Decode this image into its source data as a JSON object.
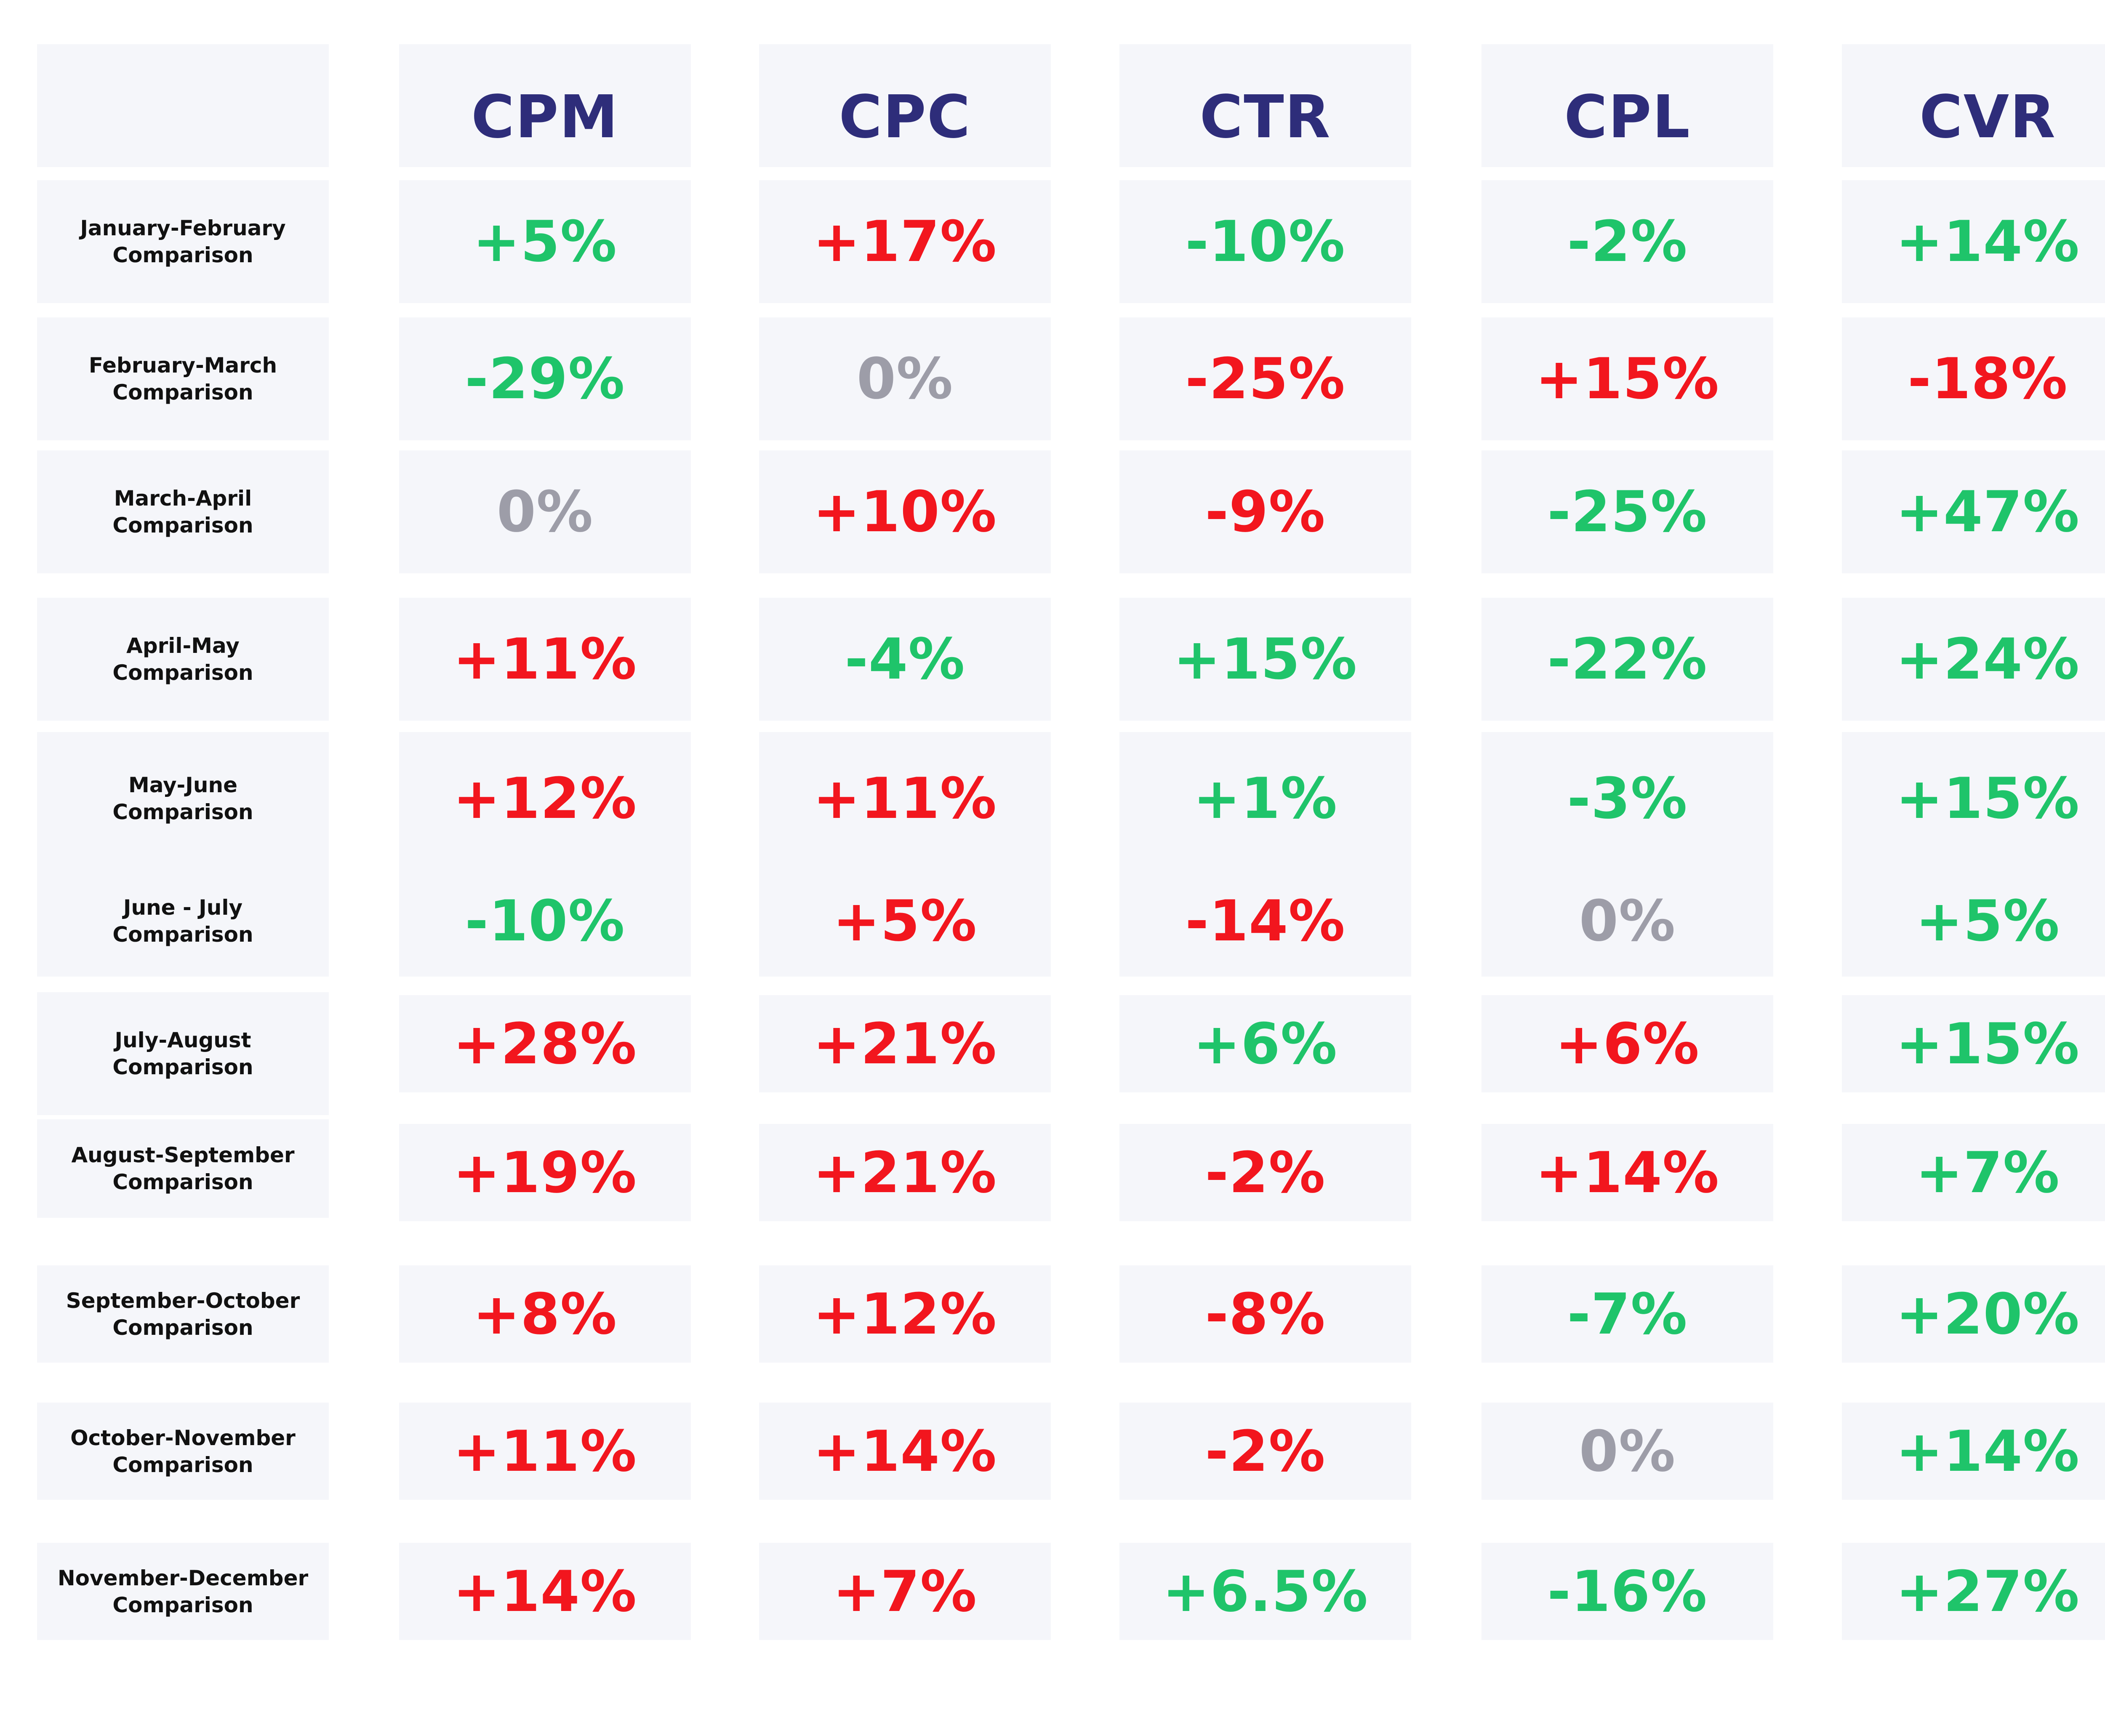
{
  "chart_data": {
    "type": "table",
    "title": "",
    "columns": [
      "CPM",
      "CPC",
      "CTR",
      "CPL",
      "CVR"
    ],
    "rows": [
      {
        "label": [
          "January-February",
          "Comparison"
        ],
        "values": [
          "+5%",
          "+17%",
          "-10%",
          "-2%",
          "+14%"
        ],
        "status": [
          "good",
          "bad",
          "good",
          "good",
          "good"
        ]
      },
      {
        "label": [
          "February-March",
          "Comparison"
        ],
        "values": [
          "-29%",
          "0%",
          "-25%",
          "+15%",
          "-18%"
        ],
        "status": [
          "good",
          "neutral",
          "bad",
          "bad",
          "bad"
        ]
      },
      {
        "label": [
          "March-April",
          "Comparison"
        ],
        "values": [
          "0%",
          "+10%",
          "-9%",
          "-25%",
          "+47%"
        ],
        "status": [
          "neutral",
          "bad",
          "bad",
          "good",
          "good"
        ]
      },
      {
        "label": [
          "April-May",
          "Comparison"
        ],
        "values": [
          "+11%",
          "-4%",
          "+15%",
          "-22%",
          "+24%"
        ],
        "status": [
          "bad",
          "good",
          "good",
          "good",
          "good"
        ]
      },
      {
        "label": [
          "May-June",
          "Comparison"
        ],
        "values": [
          "+12%",
          "+11%",
          "+1%",
          "-3%",
          "+15%"
        ],
        "status": [
          "bad",
          "bad",
          "good",
          "good",
          "good"
        ]
      },
      {
        "label": [
          "June - July",
          "Comparison"
        ],
        "values": [
          "-10%",
          "+5%",
          "-14%",
          "0%",
          "+5%"
        ],
        "status": [
          "good",
          "bad",
          "bad",
          "neutral",
          "good"
        ]
      },
      {
        "label": [
          "July-August",
          "Comparison"
        ],
        "values": [
          "+28%",
          "+21%",
          "+6%",
          "+6%",
          "+15%"
        ],
        "status": [
          "bad",
          "bad",
          "good",
          "bad",
          "good"
        ]
      },
      {
        "label": [
          "August-September",
          "Comparison"
        ],
        "values": [
          "+19%",
          "+21%",
          "-2%",
          "+14%",
          "+7%"
        ],
        "status": [
          "bad",
          "bad",
          "bad",
          "bad",
          "good"
        ]
      },
      {
        "label": [
          "September-October",
          "Comparison"
        ],
        "values": [
          "+8%",
          "+12%",
          "-8%",
          "-7%",
          "+20%"
        ],
        "status": [
          "bad",
          "bad",
          "bad",
          "good",
          "good"
        ]
      },
      {
        "label": [
          "October-November",
          "Comparison"
        ],
        "values": [
          "+11%",
          "+14%",
          "-2%",
          "0%",
          "+14%"
        ],
        "status": [
          "bad",
          "bad",
          "bad",
          "neutral",
          "good"
        ]
      },
      {
        "label": [
          "November-December",
          "Comparison"
        ],
        "values": [
          "+14%",
          "+7%",
          "+6.5%",
          "-16%",
          "+27%"
        ],
        "status": [
          "bad",
          "bad",
          "good",
          "good",
          "good"
        ]
      }
    ],
    "colors": {
      "good": "#1fc46a",
      "bad": "#f2161e",
      "neutral": "#9d9da8",
      "header": "#2e2d7a",
      "cell_background": "#f5f6fa"
    }
  }
}
